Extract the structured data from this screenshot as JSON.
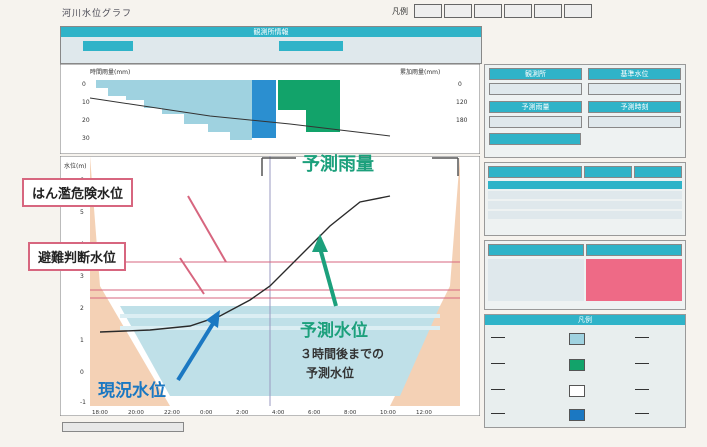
{
  "window": {
    "title": "河川水位グラフ"
  },
  "toolbar": {
    "label": "凡例",
    "buttons": [
      "",
      "",
      "",
      "",
      "",
      ""
    ]
  },
  "header": {
    "title": "観測所情報"
  },
  "rain_chart": {
    "left_label": "時間雨量(mm)",
    "right_label": "累加雨量(mm)",
    "left_ticks": [
      "0",
      "10",
      "20",
      "30"
    ],
    "right_ticks": [
      "0",
      "120",
      "180"
    ]
  },
  "water_chart": {
    "y_unit": "水位(m)",
    "y_ticks": [
      "6",
      "5",
      "4",
      "3",
      "2",
      "1",
      "0",
      "-1"
    ],
    "x_ticks": [
      "18:00",
      "20:00",
      "22:00",
      "0:00",
      "2:00",
      "4:00",
      "6:00",
      "8:00",
      "10:00",
      "12:00"
    ]
  },
  "annotations": {
    "forecast_rain": "予測雨量",
    "flood_danger_level": "はん濫危険水位",
    "evacuation_level": "避難判断水位",
    "forecast_level": "予測水位",
    "forecast_note_line1": "３時間後までの",
    "forecast_note_line2": "予測水位",
    "current_level": "現況水位"
  },
  "side_panel": {
    "block1_heads": [
      "観測所",
      "基準水位"
    ],
    "block1_values": [
      "",
      ""
    ],
    "block2_heads": [
      "予測雨量",
      "予測時刻"
    ],
    "table1_head": [
      "",
      "",
      ""
    ],
    "table2_head": [
      "",
      ""
    ],
    "legend_head": "凡例"
  },
  "colors": {
    "teal": "#2fb3c8",
    "green": "#12a36a",
    "flood_line": "#d7667f",
    "forecast_line": "#1ca07c",
    "current_line": "#1b78c2",
    "bank": "#f2c9a8",
    "water_fill": "#bfe0e8",
    "alert_pink": "#ee6a86"
  }
}
